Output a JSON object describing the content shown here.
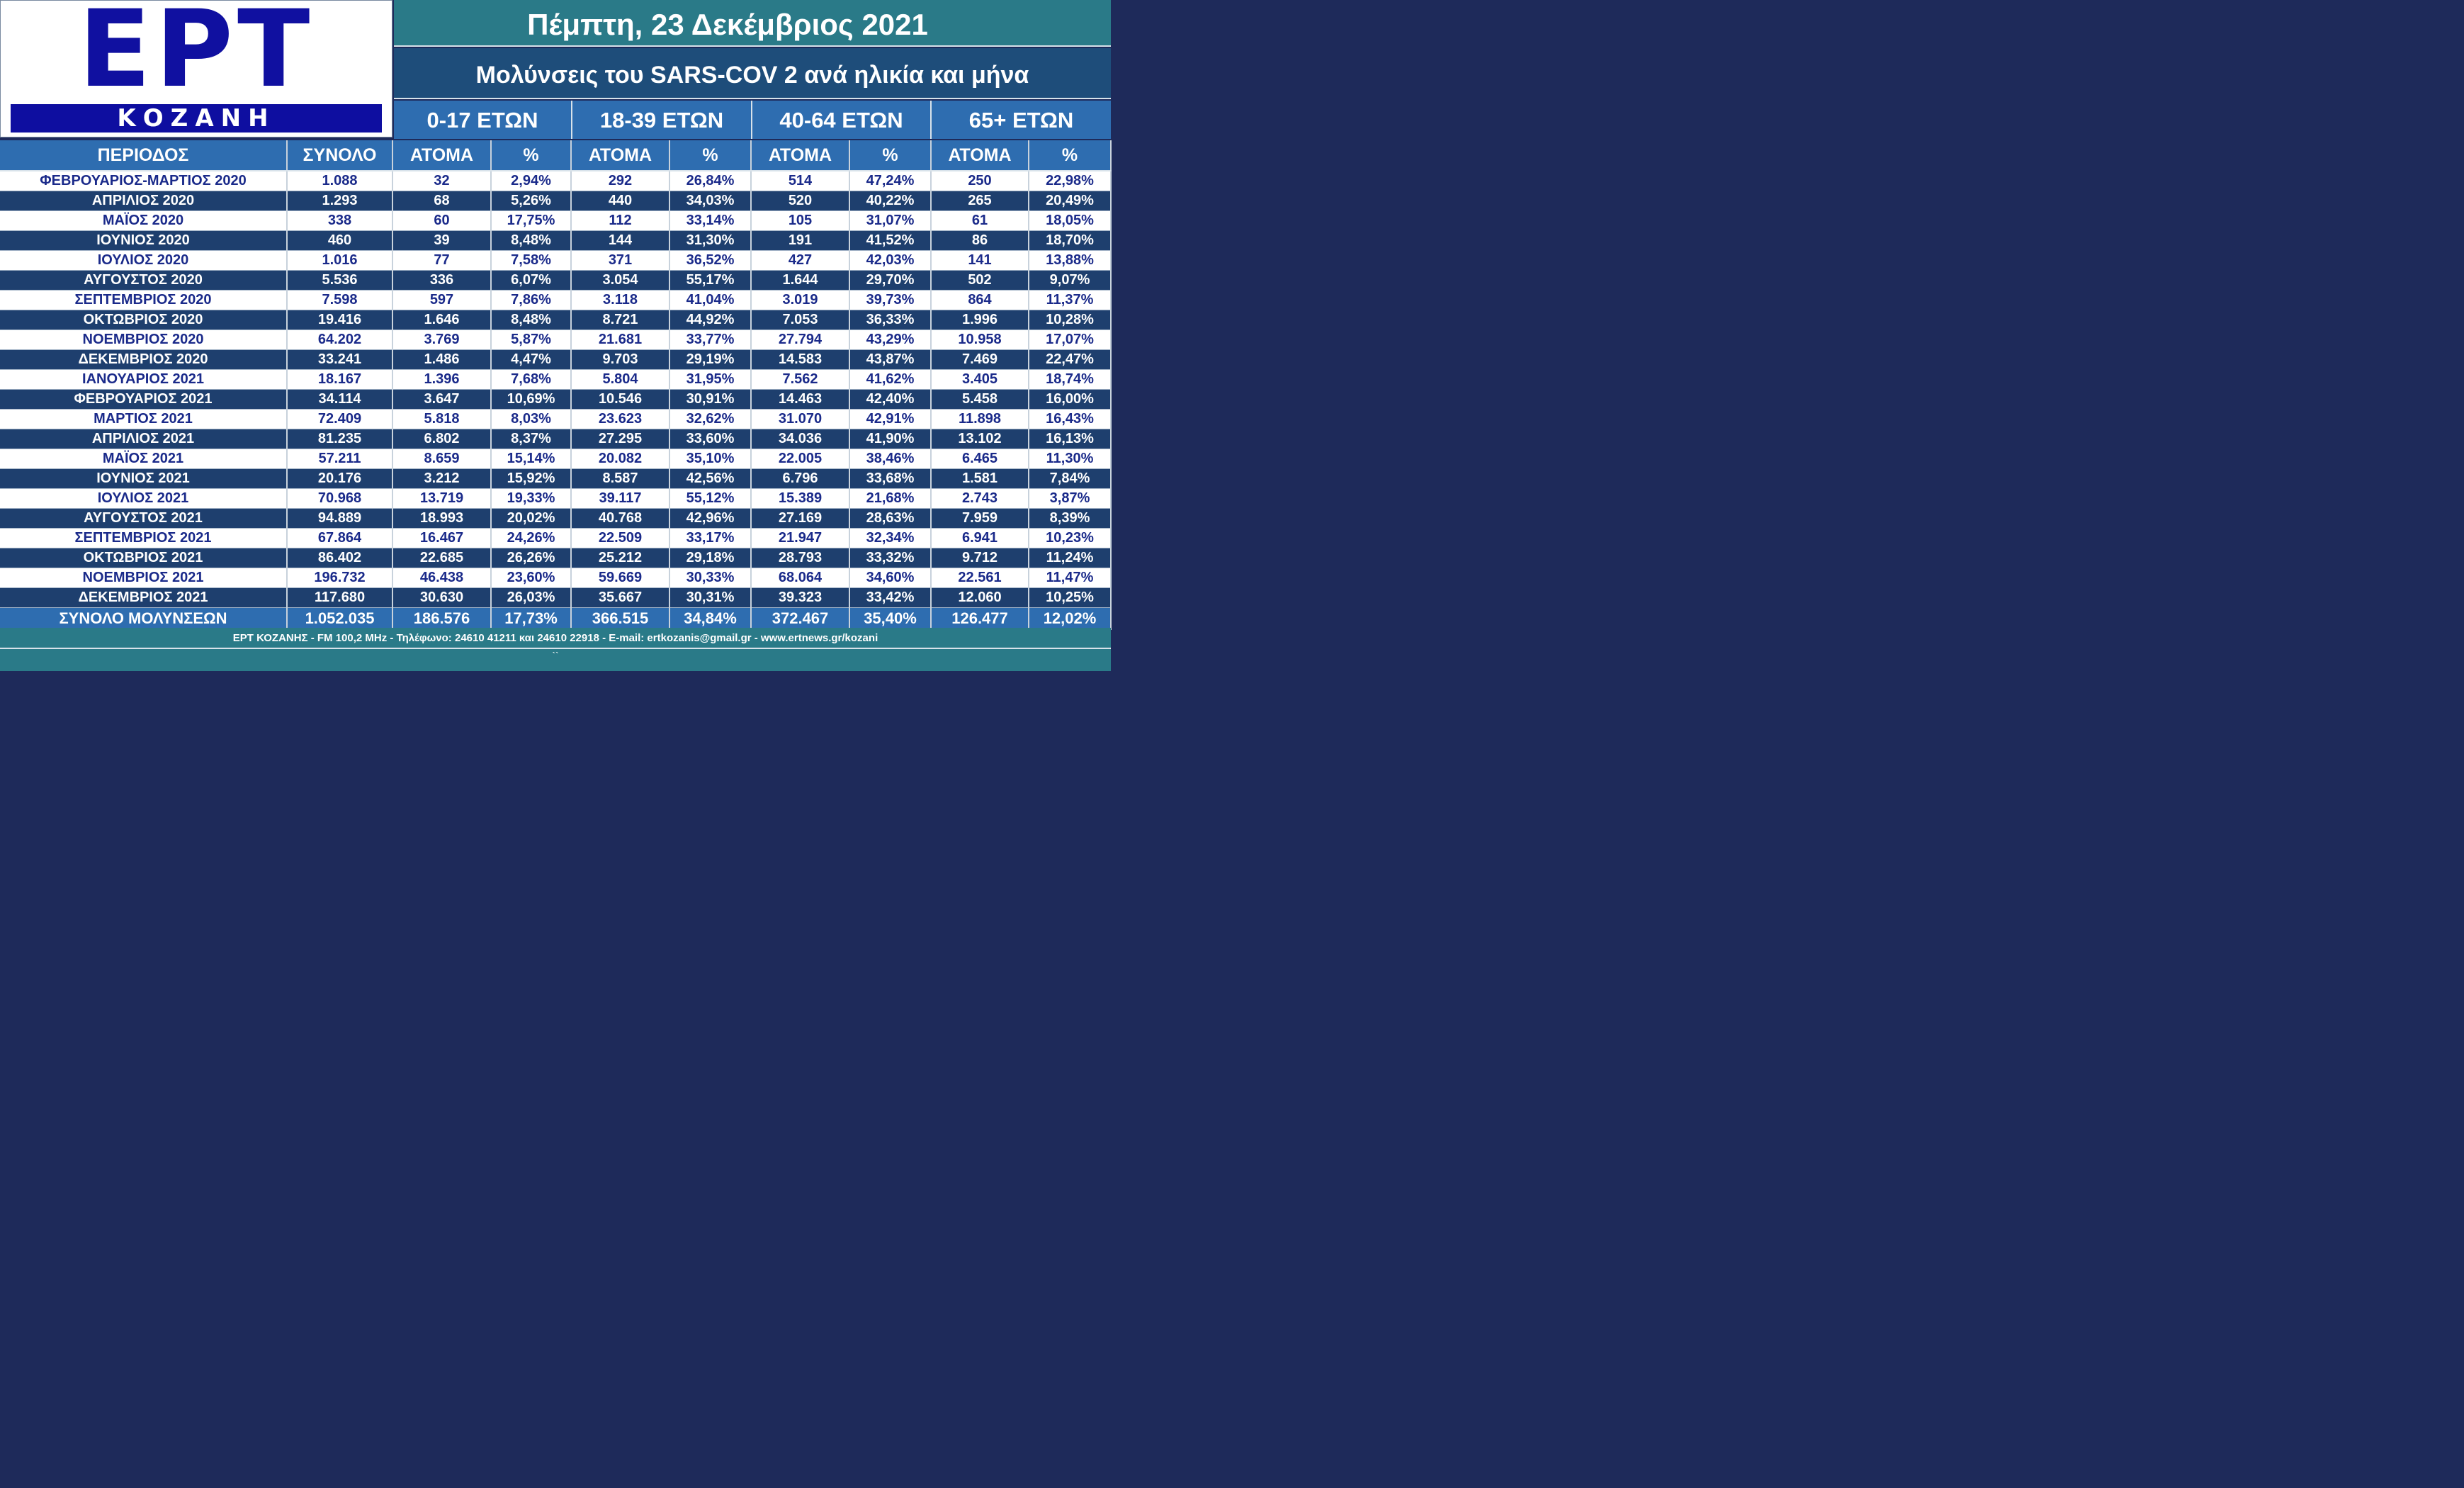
{
  "logo": {
    "name": "ΕΡΤ",
    "city": "ΚΟΖΑΝΗ"
  },
  "header": {
    "date": "Πέμπτη, 23 Δεκέμβριος 2021",
    "subtitle": "Μολύνσεις του SARS-COV 2 ανά ηλικία και μήνα"
  },
  "age_groups": [
    "0-17 ΕΤΩΝ",
    "18-39 ΕΤΩΝ",
    "40-64 ΕΤΩΝ",
    "65+  ΕΤΩΝ"
  ],
  "columns": [
    "ΠΕΡΙΟΔΟΣ",
    "ΣΥΝΟΛΟ",
    "ΑΤΟΜΑ",
    "%",
    "ΑΤΟΜΑ",
    "%",
    "ΑΤΟΜΑ",
    "%",
    "ΑΤΟΜΑ",
    "%"
  ],
  "rows": [
    [
      "ΦΕΒΡΟΥΑΡΙΟΣ-ΜΑΡΤΙΟΣ 2020",
      "1.088",
      "32",
      "2,94%",
      "292",
      "26,84%",
      "514",
      "47,24%",
      "250",
      "22,98%"
    ],
    [
      "ΑΠΡΙΛΙΟΣ 2020",
      "1.293",
      "68",
      "5,26%",
      "440",
      "34,03%",
      "520",
      "40,22%",
      "265",
      "20,49%"
    ],
    [
      "ΜΑΪΟΣ 2020",
      "338",
      "60",
      "17,75%",
      "112",
      "33,14%",
      "105",
      "31,07%",
      "61",
      "18,05%"
    ],
    [
      "ΙΟΥΝΙΟΣ 2020",
      "460",
      "39",
      "8,48%",
      "144",
      "31,30%",
      "191",
      "41,52%",
      "86",
      "18,70%"
    ],
    [
      "ΙΟΥΛΙΟΣ 2020",
      "1.016",
      "77",
      "7,58%",
      "371",
      "36,52%",
      "427",
      "42,03%",
      "141",
      "13,88%"
    ],
    [
      "ΑΥΓΟΥΣΤΟΣ 2020",
      "5.536",
      "336",
      "6,07%",
      "3.054",
      "55,17%",
      "1.644",
      "29,70%",
      "502",
      "9,07%"
    ],
    [
      "ΣΕΠΤΕΜΒΡΙΟΣ 2020",
      "7.598",
      "597",
      "7,86%",
      "3.118",
      "41,04%",
      "3.019",
      "39,73%",
      "864",
      "11,37%"
    ],
    [
      "ΟΚΤΩΒΡΙΟΣ 2020",
      "19.416",
      "1.646",
      "8,48%",
      "8.721",
      "44,92%",
      "7.053",
      "36,33%",
      "1.996",
      "10,28%"
    ],
    [
      "ΝΟΕΜΒΡΙΟΣ 2020",
      "64.202",
      "3.769",
      "5,87%",
      "21.681",
      "33,77%",
      "27.794",
      "43,29%",
      "10.958",
      "17,07%"
    ],
    [
      "ΔΕΚΕΜΒΡΙΟΣ 2020",
      "33.241",
      "1.486",
      "4,47%",
      "9.703",
      "29,19%",
      "14.583",
      "43,87%",
      "7.469",
      "22,47%"
    ],
    [
      "ΙΑΝΟΥΑΡΙΟΣ 2021",
      "18.167",
      "1.396",
      "7,68%",
      "5.804",
      "31,95%",
      "7.562",
      "41,62%",
      "3.405",
      "18,74%"
    ],
    [
      "ΦΕΒΡΟΥΑΡΙΟΣ 2021",
      "34.114",
      "3.647",
      "10,69%",
      "10.546",
      "30,91%",
      "14.463",
      "42,40%",
      "5.458",
      "16,00%"
    ],
    [
      "ΜΑΡΤΙΟΣ 2021",
      "72.409",
      "5.818",
      "8,03%",
      "23.623",
      "32,62%",
      "31.070",
      "42,91%",
      "11.898",
      "16,43%"
    ],
    [
      "ΑΠΡΙΛΙΟΣ 2021",
      "81.235",
      "6.802",
      "8,37%",
      "27.295",
      "33,60%",
      "34.036",
      "41,90%",
      "13.102",
      "16,13%"
    ],
    [
      "ΜΑΪΟΣ 2021",
      "57.211",
      "8.659",
      "15,14%",
      "20.082",
      "35,10%",
      "22.005",
      "38,46%",
      "6.465",
      "11,30%"
    ],
    [
      "ΙΟΥΝΙΟΣ 2021",
      "20.176",
      "3.212",
      "15,92%",
      "8.587",
      "42,56%",
      "6.796",
      "33,68%",
      "1.581",
      "7,84%"
    ],
    [
      "ΙΟΥΛΙΟΣ 2021",
      "70.968",
      "13.719",
      "19,33%",
      "39.117",
      "55,12%",
      "15.389",
      "21,68%",
      "2.743",
      "3,87%"
    ],
    [
      "ΑΥΓΟΥΣΤΟΣ 2021",
      "94.889",
      "18.993",
      "20,02%",
      "40.768",
      "42,96%",
      "27.169",
      "28,63%",
      "7.959",
      "8,39%"
    ],
    [
      "ΣΕΠΤΕΜΒΡΙΟΣ 2021",
      "67.864",
      "16.467",
      "24,26%",
      "22.509",
      "33,17%",
      "21.947",
      "32,34%",
      "6.941",
      "10,23%"
    ],
    [
      "ΟΚΤΩΒΡΙΟΣ 2021",
      "86.402",
      "22.685",
      "26,26%",
      "25.212",
      "29,18%",
      "28.793",
      "33,32%",
      "9.712",
      "11,24%"
    ],
    [
      "ΝΟΕΜΒΡΙΟΣ 2021",
      "196.732",
      "46.438",
      "23,60%",
      "59.669",
      "30,33%",
      "68.064",
      "34,60%",
      "22.561",
      "11,47%"
    ],
    [
      "ΔΕΚΕΜΒΡΙΟΣ 2021",
      "117.680",
      "30.630",
      "26,03%",
      "35.667",
      "30,31%",
      "39.323",
      "33,42%",
      "12.060",
      "10,25%"
    ]
  ],
  "total_row": [
    "ΣΥΝΟΛΟ ΜΟΛΥΝΣΕΩΝ",
    "1.052.035",
    "186.576",
    "17,73%",
    "366.515",
    "34,84%",
    "372.467",
    "35,40%",
    "126.477",
    "12,02%"
  ],
  "footer": {
    "contact": "ΕΡΤ ΚΟΖΑΝΗΣ - FM 100,2 MHz - Τηλέφωνο:  24610 41211 και 24610 22918 - E-mail: ertkozanis@gmail.gr - www.ertnews.gr/kozani",
    "mark": "``"
  },
  "colors": {
    "logo_blue": "#1010a0",
    "teal": "#2a7a88",
    "navy": "#1e4d7a",
    "header_blue": "#2e6db0",
    "dark_row": "#1e3f6e",
    "light_row_text": "#1a2a8a"
  }
}
